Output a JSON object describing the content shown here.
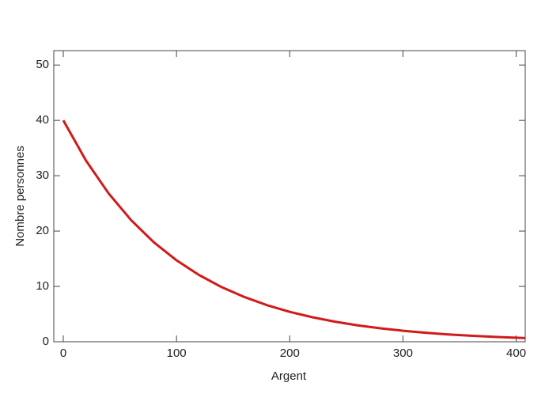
{
  "chart_data": {
    "type": "line",
    "x_label": "Argent",
    "y_label": "Nombre personnes",
    "x": [
      0,
      20,
      40,
      60,
      80,
      100,
      120,
      140,
      160,
      180,
      200,
      220,
      240,
      260,
      280,
      300,
      320,
      340,
      360,
      380,
      400,
      408
    ],
    "series": [
      {
        "color": "#d11a1a",
        "values": [
          40,
          32.75,
          26.81,
          21.95,
          17.97,
          14.72,
          12.05,
          9.86,
          8.08,
          6.61,
          5.41,
          4.43,
          3.63,
          2.97,
          2.43,
          1.99,
          1.63,
          1.33,
          1.09,
          0.89,
          0.73,
          0.67
        ]
      }
    ],
    "xlim": [
      -8.4,
      408
    ],
    "ylim": [
      0,
      52.6
    ],
    "xticks": [
      0,
      100,
      200,
      300,
      400
    ],
    "yticks": [
      0,
      10,
      20,
      30,
      40,
      50
    ]
  }
}
